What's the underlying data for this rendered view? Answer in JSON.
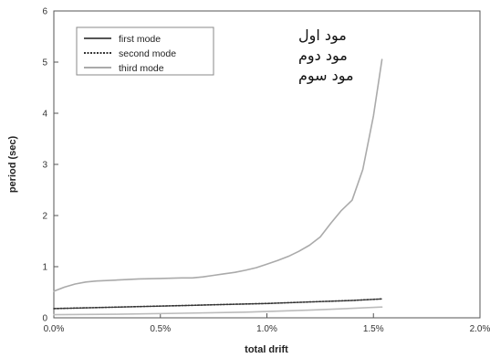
{
  "chart_data": {
    "type": "line",
    "xlabel": "total drift",
    "ylabel": "period (sec)",
    "xlim": [
      0,
      2.0
    ],
    "ylim": [
      0,
      6
    ],
    "x_ticks": [
      0,
      0.5,
      1.0,
      1.5,
      2.0
    ],
    "x_tick_labels": [
      "0.0%",
      "0.5%",
      "1.0%",
      "1.5%",
      "2.0%"
    ],
    "y_ticks": [
      0,
      1,
      2,
      3,
      4,
      5,
      6
    ],
    "y_tick_labels": [
      "0",
      "1",
      "2",
      "3",
      "4",
      "5",
      "6"
    ],
    "grid": false,
    "legend_position": "top-left",
    "series": [
      {
        "name": "first mode",
        "style": "solid",
        "color": "#aaaaaa",
        "x": [
          0.0,
          0.05,
          0.1,
          0.15,
          0.2,
          0.3,
          0.4,
          0.5,
          0.6,
          0.65,
          0.7,
          0.75,
          0.8,
          0.85,
          0.9,
          0.95,
          1.0,
          1.05,
          1.1,
          1.15,
          1.2,
          1.25,
          1.3,
          1.35,
          1.4,
          1.45,
          1.5,
          1.54
        ],
        "y": [
          0.52,
          0.6,
          0.66,
          0.7,
          0.72,
          0.74,
          0.76,
          0.77,
          0.78,
          0.78,
          0.8,
          0.83,
          0.86,
          0.89,
          0.93,
          0.98,
          1.05,
          1.12,
          1.2,
          1.3,
          1.42,
          1.58,
          1.85,
          2.1,
          2.3,
          2.9,
          3.95,
          5.05
        ]
      },
      {
        "name": "second mode",
        "style": "dotted",
        "color": "#333333",
        "x": [
          0.0,
          0.2,
          0.4,
          0.6,
          0.8,
          1.0,
          1.2,
          1.4,
          1.54
        ],
        "y": [
          0.18,
          0.2,
          0.22,
          0.24,
          0.26,
          0.28,
          0.31,
          0.34,
          0.37
        ]
      },
      {
        "name": "third mode",
        "style": "solid",
        "color": "#bbbbbb",
        "x": [
          0.0,
          0.3,
          0.6,
          0.9,
          1.2,
          1.54
        ],
        "y": [
          0.06,
          0.07,
          0.09,
          0.11,
          0.15,
          0.21
        ]
      }
    ],
    "annotations": [
      "مود اول",
      "مود دوم",
      "مود سوم"
    ]
  },
  "legend": {
    "line_colors": [
      "#555555",
      "#333333",
      "#aaaaaa"
    ],
    "line_styles": [
      "solid",
      "dotted",
      "solid"
    ]
  }
}
